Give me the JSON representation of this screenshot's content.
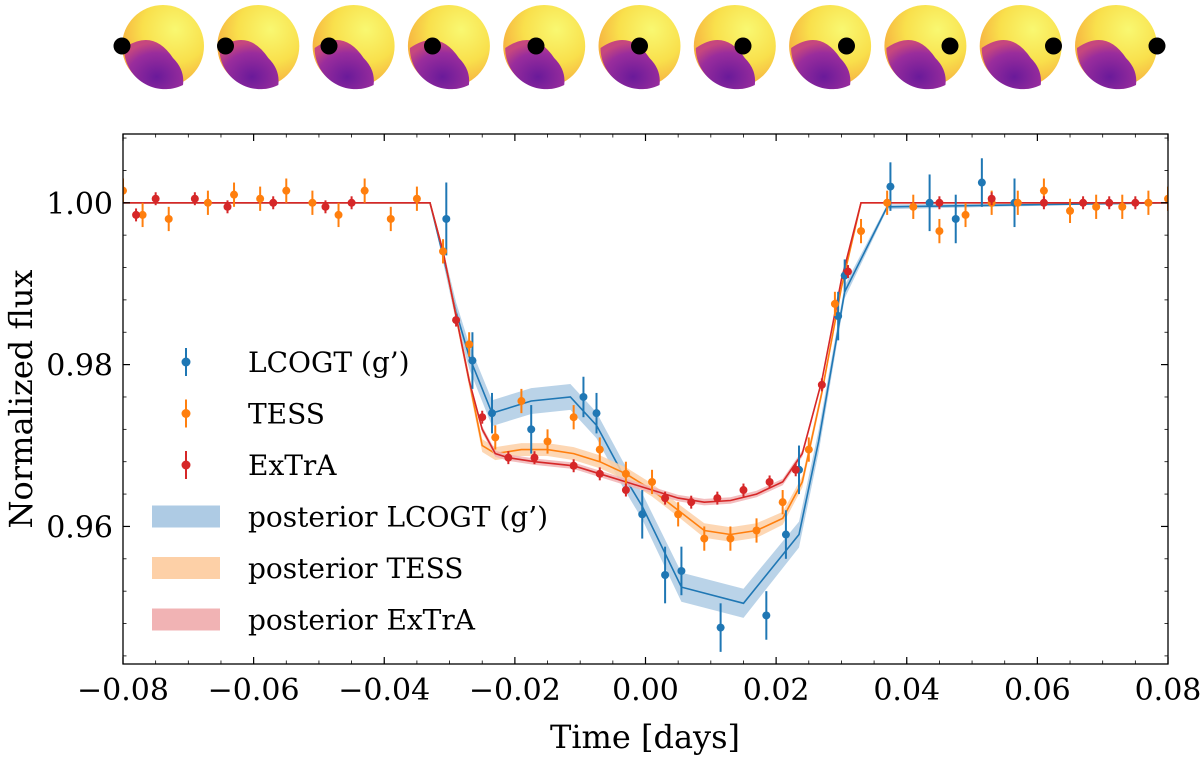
{
  "figure": {
    "description_colors": {
      "star_bright": "#f9f871",
      "star_mid": "#f5a03c",
      "star_dark": "#6a1a9a",
      "planet": "#000000"
    },
    "star_panels": {
      "count": 11,
      "planet_phase": [
        0.0,
        0.1,
        0.2,
        0.3,
        0.4,
        0.5,
        0.6,
        0.7,
        0.8,
        0.9,
        1.0
      ]
    }
  },
  "chart_data": {
    "type": "scatter",
    "xlabel": "Time [days]",
    "ylabel": "Normalized flux",
    "xlim": [
      -0.08,
      0.08
    ],
    "ylim": [
      0.943,
      1.0085
    ],
    "xticks": [
      -0.08,
      -0.06,
      -0.04,
      -0.02,
      0.0,
      0.02,
      0.04,
      0.06,
      0.08
    ],
    "xtick_labels": [
      "−0.08",
      "−0.06",
      "−0.04",
      "−0.02",
      "0.00",
      "0.02",
      "0.04",
      "0.06",
      "0.08"
    ],
    "yticks": [
      0.96,
      0.98,
      1.0
    ],
    "ytick_labels": [
      "0.96",
      "0.98",
      "1.00"
    ],
    "legend_position": "lower-left",
    "series": [
      {
        "name": "LCOGT (g’)",
        "color": "#1f77b4",
        "x": [
          -0.0305,
          -0.0265,
          -0.0235,
          -0.0175,
          -0.0095,
          -0.0075,
          -0.0005,
          0.003,
          0.0055,
          0.0115,
          0.0185,
          0.0215,
          0.0235,
          0.0295,
          0.0305,
          0.0375,
          0.0435,
          0.0475,
          0.0515,
          0.0565
        ],
        "y": [
          0.998,
          0.9805,
          0.974,
          0.972,
          0.976,
          0.974,
          0.9615,
          0.954,
          0.9545,
          0.9475,
          0.949,
          0.959,
          0.967,
          0.986,
          0.991,
          1.002,
          1.0,
          0.998,
          1.0025,
          1.0
        ],
        "yerr": [
          0.0045,
          0.0035,
          0.0025,
          0.003,
          0.0025,
          0.0025,
          0.003,
          0.0035,
          0.003,
          0.003,
          0.003,
          0.003,
          0.003,
          0.003,
          0.002,
          0.003,
          0.0035,
          0.003,
          0.003,
          0.003
        ]
      },
      {
        "name": "TESS",
        "color": "#ff7f0e",
        "x": [
          -0.08,
          -0.077,
          -0.073,
          -0.067,
          -0.063,
          -0.059,
          -0.055,
          -0.051,
          -0.047,
          -0.043,
          -0.039,
          -0.035,
          -0.031,
          -0.027,
          -0.023,
          -0.019,
          -0.015,
          -0.011,
          -0.007,
          -0.003,
          0.001,
          0.005,
          0.009,
          0.013,
          0.017,
          0.021,
          0.025,
          0.029,
          0.033,
          0.037,
          0.041,
          0.045,
          0.049,
          0.053,
          0.057,
          0.061,
          0.065,
          0.069,
          0.073,
          0.077,
          0.08
        ],
        "y": [
          1.0015,
          0.9985,
          0.998,
          1.0,
          1.001,
          1.0005,
          1.0015,
          1.0,
          0.9985,
          1.0015,
          0.998,
          1.0005,
          0.994,
          0.9825,
          0.971,
          0.9755,
          0.9705,
          0.9735,
          0.9695,
          0.9665,
          0.9655,
          0.9615,
          0.9585,
          0.9585,
          0.9595,
          0.963,
          0.9695,
          0.9875,
          0.9965,
          1.0,
          0.9995,
          0.9965,
          0.9985,
          1.0,
          1.0,
          1.0015,
          0.999,
          0.9995,
          0.9995,
          1.0,
          1.0005
        ],
        "yerr": [
          0.0015,
          0.0015,
          0.0015,
          0.0015,
          0.0015,
          0.0015,
          0.0015,
          0.0015,
          0.0015,
          0.0015,
          0.0015,
          0.0015,
          0.0015,
          0.0015,
          0.0015,
          0.0015,
          0.0015,
          0.0015,
          0.0015,
          0.0015,
          0.0015,
          0.0015,
          0.0015,
          0.0015,
          0.0015,
          0.0015,
          0.0015,
          0.0015,
          0.0015,
          0.0015,
          0.0015,
          0.0015,
          0.0015,
          0.0015,
          0.0015,
          0.0015,
          0.0015,
          0.0015,
          0.0015,
          0.0015,
          0.0015
        ]
      },
      {
        "name": "ExTrA",
        "color": "#d62728",
        "x": [
          -0.078,
          -0.075,
          -0.069,
          -0.064,
          -0.057,
          -0.049,
          -0.045,
          -0.029,
          -0.025,
          -0.021,
          -0.017,
          -0.011,
          -0.007,
          -0.003,
          0.003,
          0.007,
          0.011,
          0.015,
          0.019,
          0.023,
          0.027,
          0.031,
          0.045,
          0.053,
          0.061,
          0.067,
          0.071,
          0.075
        ],
        "y": [
          0.9985,
          1.0005,
          1.0005,
          0.9995,
          1.0,
          0.9995,
          1.0,
          0.9855,
          0.9735,
          0.9685,
          0.9685,
          0.9675,
          0.9665,
          0.9645,
          0.9635,
          0.963,
          0.9635,
          0.9645,
          0.9655,
          0.967,
          0.9775,
          0.9915,
          1.0,
          1.0005,
          1.0,
          1.0,
          1.0,
          1.0
        ],
        "yerr": [
          0.0008,
          0.0008,
          0.0008,
          0.0008,
          0.0008,
          0.0008,
          0.0008,
          0.0008,
          0.0008,
          0.0008,
          0.0008,
          0.0008,
          0.0008,
          0.0008,
          0.0008,
          0.0008,
          0.0008,
          0.0008,
          0.0008,
          0.0008,
          0.0008,
          0.0008,
          0.0008,
          0.0008,
          0.0008,
          0.0008,
          0.0008,
          0.0008
        ]
      }
    ],
    "posteriors": [
      {
        "name": "posterior LCOGT (g’)",
        "color": "#1f77b4",
        "fill": "#aecbe4",
        "x": [
          -0.08,
          -0.033,
          -0.031,
          -0.029,
          -0.027,
          -0.0235,
          -0.0175,
          -0.0115,
          -0.0075,
          -0.0035,
          -0.0005,
          0.0055,
          0.015,
          0.0235,
          0.0265,
          0.0305,
          0.037,
          0.08
        ],
        "y": [
          1.0,
          1.0,
          0.9935,
          0.9865,
          0.981,
          0.974,
          0.9755,
          0.976,
          0.9725,
          0.9665,
          0.9625,
          0.9525,
          0.9505,
          0.959,
          0.9705,
          0.989,
          0.9995,
          1.0
        ],
        "width": [
          0.0,
          0.0,
          0.0008,
          0.0012,
          0.0015,
          0.0016,
          0.0016,
          0.0016,
          0.0016,
          0.0016,
          0.0016,
          0.0018,
          0.0018,
          0.0016,
          0.0014,
          0.0008,
          0.0003,
          0.0
        ]
      },
      {
        "name": "posterior TESS",
        "color": "#ff7f0e",
        "fill": "#fdd0a7",
        "x": [
          -0.08,
          -0.033,
          -0.031,
          -0.029,
          -0.027,
          -0.025,
          -0.023,
          -0.019,
          -0.015,
          -0.011,
          -0.007,
          -0.003,
          0.001,
          0.005,
          0.009,
          0.013,
          0.017,
          0.021,
          0.024,
          0.027,
          0.03,
          0.033,
          0.08
        ],
        "y": [
          1.0,
          1.0,
          0.994,
          0.986,
          0.978,
          0.97,
          0.969,
          0.9695,
          0.9695,
          0.969,
          0.968,
          0.9665,
          0.9645,
          0.962,
          0.9595,
          0.959,
          0.9595,
          0.961,
          0.9655,
          0.9765,
          0.9895,
          1.0,
          1.0
        ],
        "width": [
          0.0,
          0.0,
          0.0005,
          0.0007,
          0.0008,
          0.0008,
          0.0008,
          0.0008,
          0.0008,
          0.0008,
          0.0008,
          0.0008,
          0.0008,
          0.0008,
          0.0009,
          0.0009,
          0.0009,
          0.0008,
          0.0007,
          0.0006,
          0.0004,
          0.0,
          0.0
        ]
      },
      {
        "name": "posterior ExTrA",
        "color": "#d62728",
        "fill": "#f1b3b4",
        "x": [
          -0.08,
          -0.033,
          -0.031,
          -0.029,
          -0.027,
          -0.025,
          -0.023,
          -0.021,
          -0.017,
          -0.011,
          -0.007,
          -0.003,
          0.001,
          0.005,
          0.009,
          0.013,
          0.017,
          0.021,
          0.024,
          0.027,
          0.03,
          0.033,
          0.08
        ],
        "y": [
          1.0,
          1.0,
          0.994,
          0.986,
          0.978,
          0.972,
          0.969,
          0.9685,
          0.968,
          0.9675,
          0.9665,
          0.9655,
          0.9645,
          0.9635,
          0.963,
          0.9632,
          0.964,
          0.9655,
          0.969,
          0.978,
          0.9905,
          1.0,
          1.0
        ],
        "width": [
          0.0,
          0.0,
          0.0003,
          0.0004,
          0.0004,
          0.0004,
          0.0004,
          0.0004,
          0.0004,
          0.0004,
          0.0004,
          0.0004,
          0.0004,
          0.0004,
          0.0004,
          0.0004,
          0.0004,
          0.0004,
          0.0004,
          0.0003,
          0.0002,
          0.0,
          0.0
        ]
      }
    ]
  }
}
